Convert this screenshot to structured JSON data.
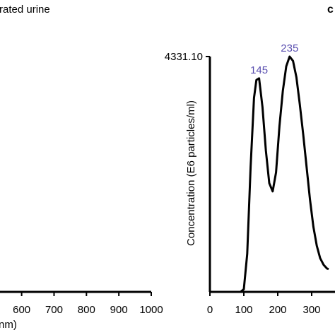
{
  "panel_title_fragment": "rated urine",
  "panel_letter": "c",
  "colors": {
    "peak_label": "#5a4fb0",
    "line": "#000000"
  },
  "chart_data": [
    {
      "type": "line",
      "panel": "left",
      "xlabel_fragment": "nm)",
      "x_ticks": [
        "600",
        "700",
        "800",
        "900",
        "1000"
      ],
      "x_tick_values": [
        600,
        700,
        800,
        900,
        1000
      ],
      "xlim": [
        555,
        1000
      ],
      "series": [
        {
          "x": [
            555,
            1000
          ],
          "y": [
            0,
            0
          ]
        }
      ]
    },
    {
      "type": "line",
      "panel": "right",
      "ylabel": "Concentration (E6 particles/ml)",
      "y_tick_labels": [
        "4331.10"
      ],
      "y_max": 4331.1,
      "ylim": [
        0,
        4331.1
      ],
      "x_ticks": [
        "0",
        "100",
        "200",
        "300"
      ],
      "x_tick_values": [
        0,
        100,
        200,
        300
      ],
      "xlim": [
        0,
        350
      ],
      "annotations": [
        {
          "text": "145",
          "x": 145,
          "y": 3930
        },
        {
          "text": "235",
          "x": 235,
          "y": 4331.1
        }
      ],
      "series": [
        {
          "x": [
            0,
            70,
            80,
            90,
            100,
            110,
            120,
            130,
            137,
            145,
            155,
            165,
            175,
            185,
            195,
            205,
            215,
            225,
            235,
            245,
            255,
            265,
            275,
            285,
            295,
            305,
            315,
            325,
            335,
            345,
            350
          ],
          "y": [
            0,
            0,
            0,
            0,
            50,
            700,
            2300,
            3570,
            3900,
            3930,
            3400,
            2600,
            2000,
            1850,
            2200,
            3050,
            3700,
            4150,
            4331.1,
            4250,
            3950,
            3450,
            2900,
            2300,
            1700,
            1200,
            850,
            620,
            500,
            430,
            420
          ]
        }
      ]
    }
  ]
}
